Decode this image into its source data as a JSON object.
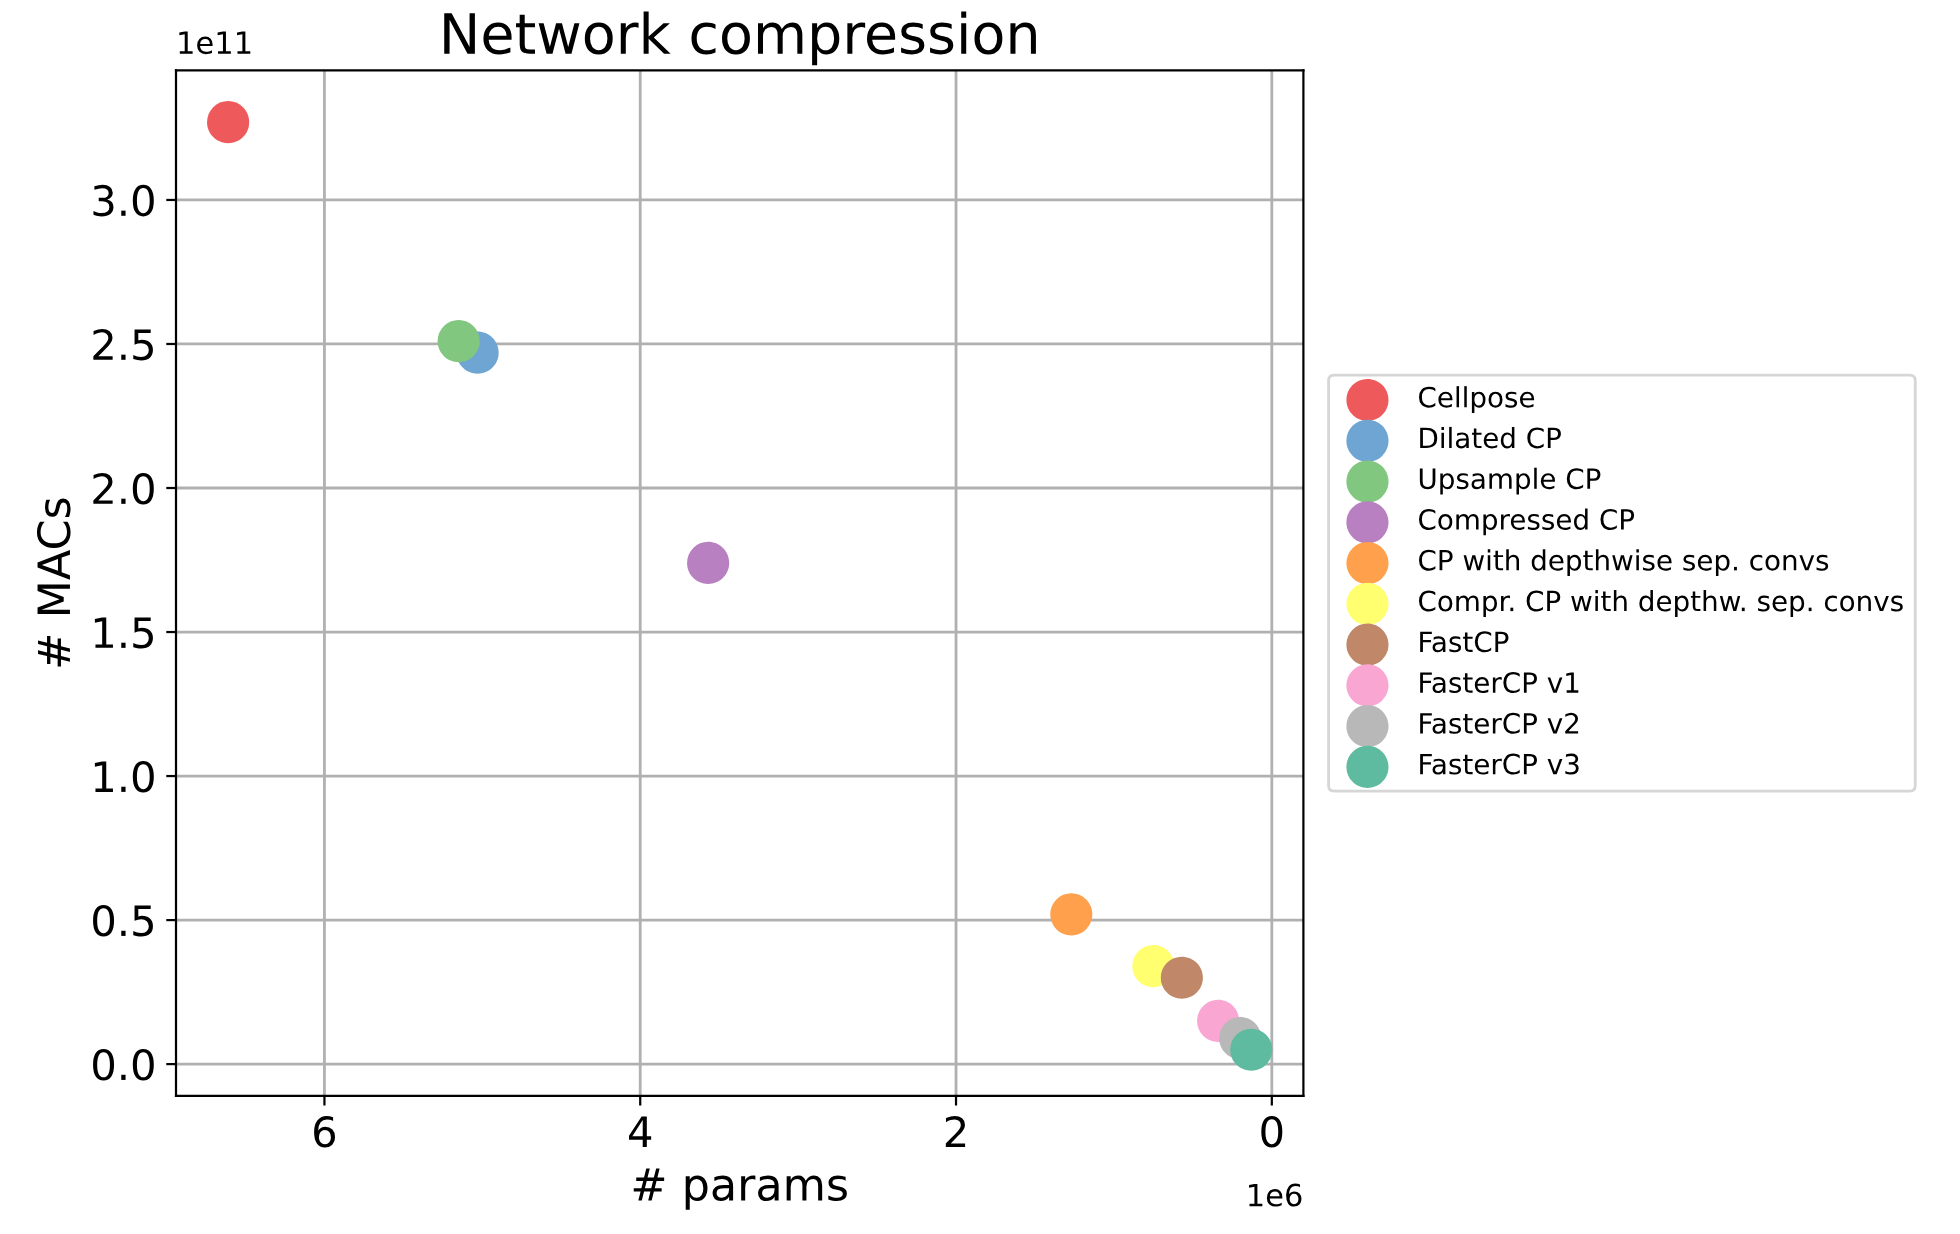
{
  "chart_data": {
    "type": "scatter",
    "title": "Network compression",
    "xlabel": "# params",
    "ylabel": "# MACs",
    "xlim": [
      6.94,
      -0.2
    ],
    "ylim": [
      -0.11,
      3.45
    ],
    "xticks": [
      6,
      4,
      2,
      0
    ],
    "yticks": [
      {
        "value": 0,
        "label": "0.0"
      },
      0.5,
      {
        "value": 1,
        "label": "1.0"
      },
      1.5,
      {
        "value": 2,
        "label": "2.0"
      },
      2.5,
      {
        "value": 3,
        "label": "3.0"
      }
    ],
    "annotations": [
      "1e11",
      "1e6"
    ],
    "grid": true,
    "legend": "right",
    "marker": "circle",
    "series": [
      {
        "name": "Cellpose",
        "color": "#ee5a5c",
        "x": [
          6.61
        ],
        "values": [
          3.27
        ]
      },
      {
        "name": "Dilated CP",
        "color": "#6fa5d3",
        "x": [
          5.03
        ],
        "values": [
          2.47
        ]
      },
      {
        "name": "Upsample CP",
        "color": "#82c77f",
        "x": [
          5.15
        ],
        "values": [
          2.51
        ]
      },
      {
        "name": "Compressed CP",
        "color": "#b880c0",
        "x": [
          3.57
        ],
        "values": [
          1.74
        ]
      },
      {
        "name": "CP with depthwise sep. convs",
        "color": "#ffa04d",
        "x": [
          1.27
        ],
        "values": [
          0.52
        ]
      },
      {
        "name": "Compr. CP with depthw. sep. convs",
        "color": "#ffff70",
        "x": [
          0.75
        ],
        "values": [
          0.34
        ]
      },
      {
        "name": "FastCP",
        "color": "#c08868",
        "x": [
          0.57
        ],
        "values": [
          0.3
        ]
      },
      {
        "name": "FasterCP v1",
        "color": "#f9a6d3",
        "x": [
          0.34
        ],
        "values": [
          0.15
        ]
      },
      {
        "name": "FasterCP v2",
        "color": "#b8b8b8",
        "x": [
          0.2
        ],
        "values": [
          0.09
        ]
      },
      {
        "name": "FasterCP v3",
        "color": "#5fbb9f",
        "x": [
          0.13
        ],
        "values": [
          0.05
        ]
      }
    ]
  }
}
